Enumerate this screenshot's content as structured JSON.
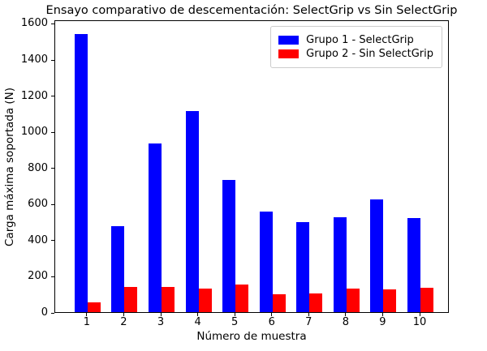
{
  "chart_data": {
    "type": "bar",
    "title": "Ensayo comparativo de descementación: SelectGrip vs Sin SelectGrip",
    "xlabel": "Número de muestra",
    "ylabel": "Carga máxima soportada (N)",
    "categories": [
      "1",
      "2",
      "3",
      "4",
      "5",
      "6",
      "7",
      "8",
      "9",
      "10"
    ],
    "series": [
      {
        "name": "Grupo 1 - SelectGrip",
        "color": "#0000ff",
        "values": [
          1540,
          476,
          935,
          1115,
          730,
          557,
          497,
          525,
          625,
          522
        ]
      },
      {
        "name": "Grupo 2 - Sin SelectGrip",
        "color": "#ff0000",
        "values": [
          55,
          138,
          138,
          130,
          153,
          98,
          105,
          131,
          124,
          136
        ]
      }
    ],
    "ylim": [
      0,
      1620
    ],
    "yticks": [
      0,
      200,
      400,
      600,
      800,
      1000,
      1200,
      1400,
      1600
    ],
    "xlim": [
      0.125,
      10.79
    ],
    "bar_width": 0.35,
    "grid": false,
    "legend_position": "upper right",
    "axis_color": "#000000",
    "background_color": "#ffffff"
  }
}
